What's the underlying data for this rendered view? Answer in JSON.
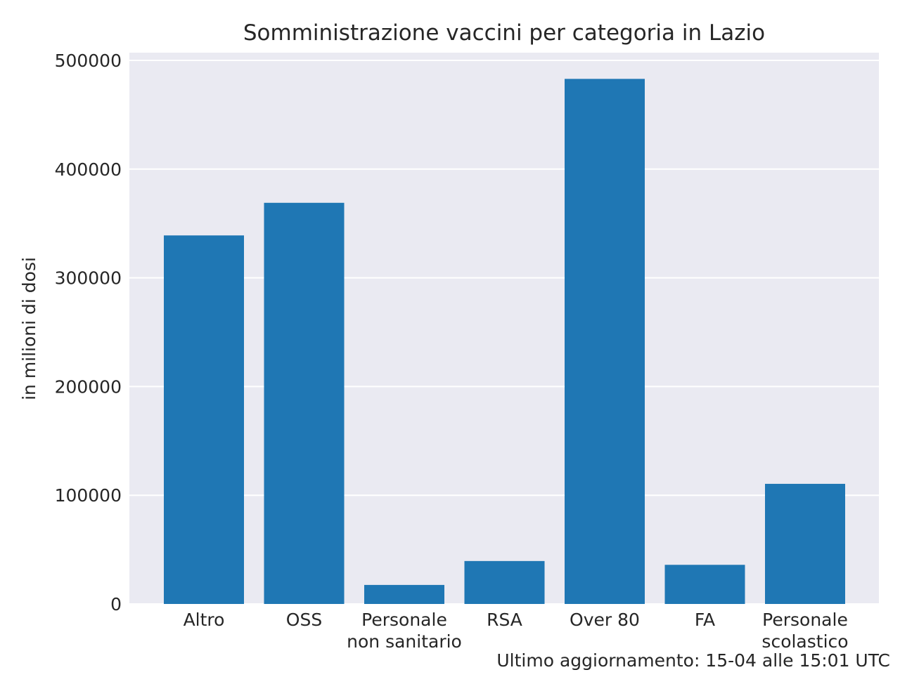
{
  "chart_data": {
    "type": "bar",
    "title": "Somministrazione vaccini per categoria in Lazio",
    "xlabel": "",
    "ylabel": "in milioni di dosi",
    "categories": [
      [
        "Altro"
      ],
      [
        "OSS"
      ],
      [
        "Personale",
        "non sanitario"
      ],
      [
        "RSA"
      ],
      [
        "Over 80"
      ],
      [
        "FA"
      ],
      [
        "Personale",
        "scolastico"
      ]
    ],
    "values": [
      339000,
      369000,
      17500,
      39500,
      483000,
      36000,
      110500
    ],
    "ylim": [
      0,
      500000
    ],
    "yticks": [
      0,
      100000,
      200000,
      300000,
      400000,
      500000
    ],
    "ytick_labels": [
      "0",
      "100000",
      "200000",
      "300000",
      "400000",
      "500000"
    ],
    "grid": true,
    "bar_color": "#1f77b4",
    "plot_background": "#eaeaf2",
    "grid_color": "#ffffff",
    "footnote": "Ultimo aggiornamento: 15-04 alle 15:01 UTC"
  }
}
